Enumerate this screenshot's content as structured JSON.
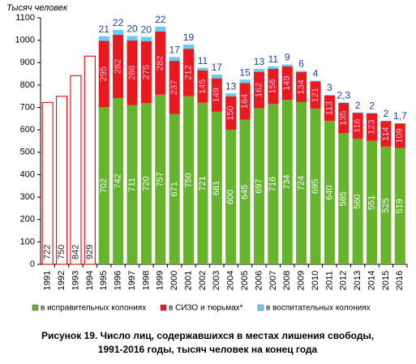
{
  "chart_data": {
    "type": "stacked_bar",
    "title": [
      "Рисунок 19. Число лиц, содержавшихся в местах лишения свободы,",
      "1991-2016 годы, тысяч человек на конец года"
    ],
    "y_label": "Тысяч  человек",
    "categories": [
      "1991",
      "1992",
      "1993",
      "1994",
      "1995",
      "1996",
      "1997",
      "1998",
      "1999",
      "2000",
      "2001",
      "2002",
      "2003",
      "2004",
      "2005",
      "2006",
      "2007",
      "2008",
      "2009",
      "2010",
      "2011",
      "2012",
      "2013",
      "2014",
      "2015",
      "2016"
    ],
    "series": [
      {
        "color": "#ffffff",
        "values": [
          722,
          750,
          842,
          929,
          null,
          null,
          null,
          null,
          null,
          null,
          null,
          null,
          null,
          null,
          null,
          null,
          null,
          null,
          null,
          null,
          null,
          null,
          null,
          null,
          null,
          null
        ]
      },
      {
        "name": "в исправительных колониях",
        "color": "#66b32e",
        "values": [
          null,
          null,
          null,
          null,
          702,
          742,
          711,
          720,
          757,
          671,
          750,
          721,
          681,
          600,
          645,
          697,
          716,
          734,
          724,
          695,
          640,
          585,
          560,
          551,
          525,
          519
        ]
      },
      {
        "name": "в СИЗО и тюрьмах*",
        "color": "#e8191f",
        "values": [
          null,
          null,
          null,
          null,
          295,
          282,
          288,
          275,
          282,
          237,
          212,
          145,
          149,
          150,
          164,
          162,
          156,
          149,
          134,
          121,
          113,
          135,
          116,
          123,
          114,
          109
        ]
      },
      {
        "name": "в воспитательных колониях",
        "color": "#66ccf5",
        "values": [
          null,
          null,
          null,
          null,
          21,
          22,
          20,
          20,
          22,
          17,
          19,
          11,
          17,
          13,
          15,
          13,
          11,
          9,
          6,
          4,
          3,
          2.3,
          2,
          2,
          2,
          1.7
        ],
        "value_labels": [
          null,
          null,
          null,
          null,
          "21",
          "22",
          "20",
          "20",
          "22",
          "17",
          "19",
          "11",
          "17",
          "13",
          "15",
          "13",
          "11",
          "9",
          "6",
          "4",
          "3",
          "2,3",
          "2",
          "2",
          "2",
          "1,7"
        ]
      }
    ],
    "ylim": [
      0,
      1100
    ],
    "yticks": [
      0,
      100,
      200,
      300,
      400,
      500,
      600,
      700,
      800,
      900,
      1000,
      1100
    ]
  }
}
